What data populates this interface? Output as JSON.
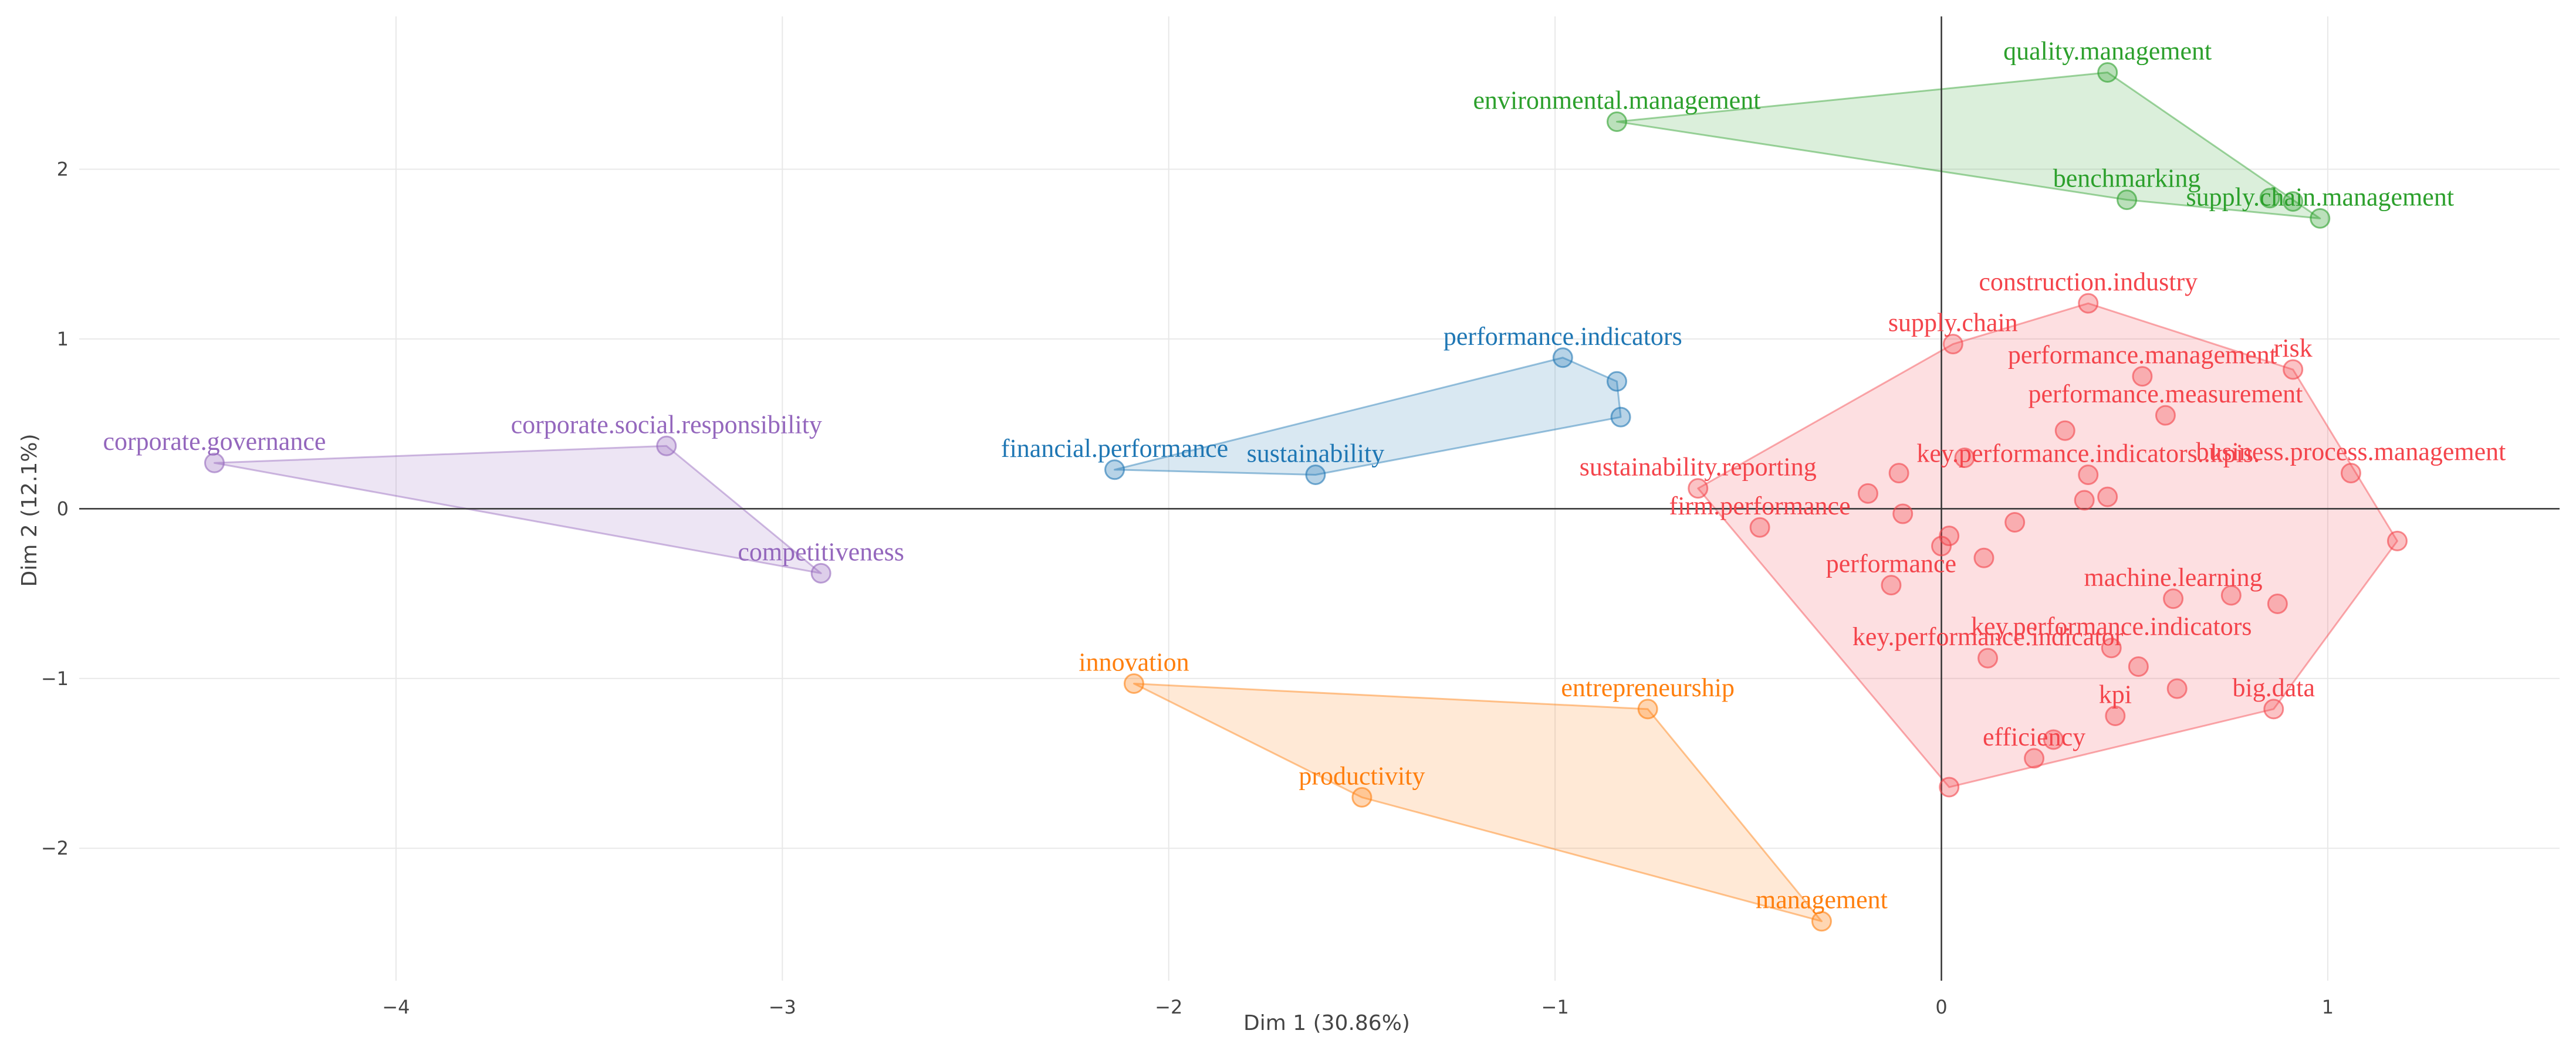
{
  "chart_data": {
    "type": "scatter",
    "title": "",
    "xlabel": "Dim 1 (30.86%)",
    "ylabel": "Dim 2 (12.1%)",
    "xlim": [
      -4.82,
      1.6
    ],
    "ylim": [
      -2.78,
      2.9
    ],
    "x_ticks": [
      -4,
      -3,
      -2,
      -1,
      0,
      1
    ],
    "y_ticks": [
      -2,
      -1,
      0,
      1,
      2
    ],
    "x_tick_labels": [
      "−4",
      "−3",
      "−2",
      "−1",
      "0",
      "1"
    ],
    "y_tick_labels": [
      "−2",
      "−1",
      "0",
      "1",
      "2"
    ],
    "grid": true,
    "legend": "none",
    "clusters": [
      {
        "color": "#2ca02c",
        "points": [
          {
            "label": "quality.management",
            "x": 0.43,
            "y": 2.57
          },
          {
            "label": "environmental.management",
            "x": -0.84,
            "y": 2.28
          },
          {
            "label": "benchmarking",
            "x": 0.48,
            "y": 1.82
          },
          {
            "label": "supply.chain.management",
            "x": 0.98,
            "y": 1.71
          },
          {
            "label": "",
            "x": 0.85,
            "y": 1.83
          },
          {
            "label": "",
            "x": 0.91,
            "y": 1.81
          }
        ]
      },
      {
        "color": "#1f77b4",
        "points": [
          {
            "label": "performance.indicators",
            "x": -0.98,
            "y": 0.89
          },
          {
            "label": "financial.performance",
            "x": -2.14,
            "y": 0.23
          },
          {
            "label": "sustainability",
            "x": -1.62,
            "y": 0.2
          },
          {
            "label": "",
            "x": -0.84,
            "y": 0.75
          },
          {
            "label": "",
            "x": -0.83,
            "y": 0.54
          }
        ]
      },
      {
        "color": "#9467bd",
        "points": [
          {
            "label": "corporate.governance",
            "x": -4.47,
            "y": 0.27
          },
          {
            "label": "corporate.social.responsibility",
            "x": -3.3,
            "y": 0.37
          },
          {
            "label": "competitiveness",
            "x": -2.9,
            "y": -0.38
          }
        ]
      },
      {
        "color": "#ff7f0e",
        "points": [
          {
            "label": "innovation",
            "x": -2.09,
            "y": -1.03
          },
          {
            "label": "entrepreneurship",
            "x": -0.76,
            "y": -1.18
          },
          {
            "label": "productivity",
            "x": -1.5,
            "y": -1.7
          },
          {
            "label": "management",
            "x": -0.31,
            "y": -2.43
          }
        ]
      },
      {
        "color": "#f4444b",
        "points": [
          {
            "label": "construction.industry",
            "x": 0.38,
            "y": 1.21
          },
          {
            "label": "supply.chain",
            "x": 0.03,
            "y": 0.97
          },
          {
            "label": "risk",
            "x": 0.91,
            "y": 0.82
          },
          {
            "label": "performance.management",
            "x": 0.52,
            "y": 0.78
          },
          {
            "label": "performance.measurement",
            "x": 0.58,
            "y": 0.55
          },
          {
            "label": "",
            "x": 0.32,
            "y": 0.46
          },
          {
            "label": "business.process.management",
            "x": 1.06,
            "y": 0.21
          },
          {
            "label": "",
            "x": 0.06,
            "y": 0.3
          },
          {
            "label": "sustainability.reporting",
            "x": -0.63,
            "y": 0.12
          },
          {
            "label": "",
            "x": -0.11,
            "y": 0.21
          },
          {
            "label": "",
            "x": -0.19,
            "y": 0.09
          },
          {
            "label": "key.performance.indicators..kpis.",
            "x": 0.38,
            "y": 0.2
          },
          {
            "label": "",
            "x": 0.37,
            "y": 0.05
          },
          {
            "label": "",
            "x": 0.43,
            "y": 0.07
          },
          {
            "label": "firm.performance",
            "x": -0.47,
            "y": -0.11
          },
          {
            "label": "",
            "x": -0.1,
            "y": -0.03
          },
          {
            "label": "",
            "x": 0.19,
            "y": -0.08
          },
          {
            "label": "",
            "x": 1.18,
            "y": -0.19
          },
          {
            "label": "",
            "x": 0.02,
            "y": -0.16
          },
          {
            "label": "",
            "x": 0.0,
            "y": -0.22
          },
          {
            "label": "",
            "x": 0.11,
            "y": -0.29
          },
          {
            "label": "performance",
            "x": -0.13,
            "y": -0.45
          },
          {
            "label": "machine.learning",
            "x": 0.6,
            "y": -0.53
          },
          {
            "label": "",
            "x": 0.75,
            "y": -0.51
          },
          {
            "label": "",
            "x": 0.87,
            "y": -0.56
          },
          {
            "label": "key.performance.indicators",
            "x": 0.44,
            "y": -0.82
          },
          {
            "label": "key.performance.indicator",
            "x": 0.12,
            "y": -0.88
          },
          {
            "label": "",
            "x": 0.51,
            "y": -0.93
          },
          {
            "label": "",
            "x": 0.61,
            "y": -1.06
          },
          {
            "label": "big.data",
            "x": 0.86,
            "y": -1.18
          },
          {
            "label": "kpi",
            "x": 0.45,
            "y": -1.22
          },
          {
            "label": "",
            "x": 0.29,
            "y": -1.36
          },
          {
            "label": "efficiency",
            "x": 0.24,
            "y": -1.47
          },
          {
            "label": "",
            "x": 0.02,
            "y": -1.64
          }
        ]
      }
    ]
  }
}
